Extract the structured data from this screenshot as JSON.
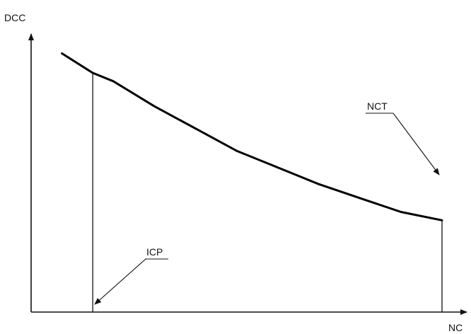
{
  "chart_data": {
    "type": "line",
    "xlabel": "NC",
    "ylabel": "DCC",
    "grid": false,
    "ticks": false,
    "series": [
      {
        "x": [
          0.075,
          0.15,
          0.2,
          0.3,
          0.4,
          0.5,
          0.6,
          0.7,
          0.8,
          0.9,
          1.0
        ],
        "values": [
          0.93,
          0.86,
          0.83,
          0.74,
          0.66,
          0.58,
          0.52,
          0.46,
          0.41,
          0.36,
          0.33
        ]
      }
    ],
    "markers": [
      {
        "label": "ICP",
        "x": 0.15
      },
      {
        "label": "NCT",
        "x": 1.0
      }
    ]
  }
}
